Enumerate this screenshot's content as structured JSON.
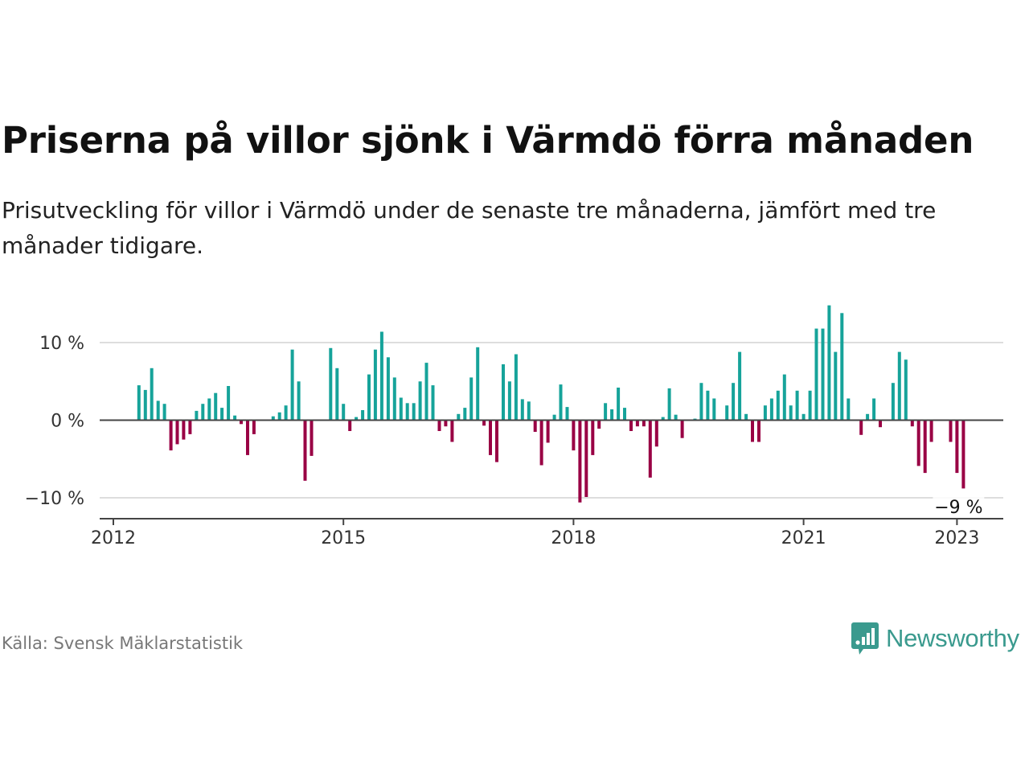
{
  "title": "Priserna på villor sjönk i Värmdö förra månaden",
  "subtitle": "Prisutveckling för villor i Värmdö under de senaste tre månaderna, jämfört med tre månader tidigare.",
  "source": "Källa: Svensk Mäklarstatistik",
  "brand": {
    "name": "Newsworthy",
    "icon": "bar-chart-speech-bubble-icon",
    "color": "#3a9a8e"
  },
  "colors": {
    "positive": "#16a39a",
    "negative": "#990044",
    "baseline": "#444444",
    "grid": "#dddddd"
  },
  "chart_data": {
    "type": "bar",
    "title": "Priserna på villor sjönk i Värmdö förra månaden",
    "subtitle": "Prisutveckling för villor i Värmdö under de senaste tre månaderna, jämfört med tre månader tidigare.",
    "xlabel": "",
    "ylabel": "",
    "unit": "%",
    "ylim": [
      -13,
      15
    ],
    "grid": true,
    "x_start": "2012-01",
    "x_end": "2023-07",
    "x_ticks": [
      {
        "date": "2012-01",
        "label": "2012"
      },
      {
        "date": "2015-01",
        "label": "2015"
      },
      {
        "date": "2018-01",
        "label": "2018"
      },
      {
        "date": "2021-01",
        "label": "2021"
      },
      {
        "date": "2023-01",
        "label": "2023"
      }
    ],
    "y_ticks": [
      {
        "value": 10,
        "label": "10 %"
      },
      {
        "value": 0,
        "label": "0 %"
      },
      {
        "value": -10,
        "label": "−10 %"
      }
    ],
    "annotation": {
      "date": "2023-01",
      "value": -9,
      "label": "−9 %"
    },
    "series": [
      {
        "values": [
          {
            "date": "2012-05",
            "value": 4.5
          },
          {
            "date": "2012-06",
            "value": 3.9
          },
          {
            "date": "2012-07",
            "value": 6.7
          },
          {
            "date": "2012-08",
            "value": 2.5
          },
          {
            "date": "2012-09",
            "value": 2.1
          },
          {
            "date": "2012-10",
            "value": -3.9
          },
          {
            "date": "2012-11",
            "value": -3.1
          },
          {
            "date": "2012-12",
            "value": -2.5
          },
          {
            "date": "2013-01",
            "value": -1.8
          },
          {
            "date": "2013-02",
            "value": 1.2
          },
          {
            "date": "2013-03",
            "value": 2.1
          },
          {
            "date": "2013-04",
            "value": 2.8
          },
          {
            "date": "2013-05",
            "value": 3.5
          },
          {
            "date": "2013-06",
            "value": 1.6
          },
          {
            "date": "2013-07",
            "value": 4.4
          },
          {
            "date": "2013-08",
            "value": 0.6
          },
          {
            "date": "2013-09",
            "value": -0.5
          },
          {
            "date": "2013-10",
            "value": -4.5
          },
          {
            "date": "2013-11",
            "value": -1.8
          },
          {
            "date": "2014-02",
            "value": 0.5
          },
          {
            "date": "2014-03",
            "value": 1.0
          },
          {
            "date": "2014-04",
            "value": 1.9
          },
          {
            "date": "2014-05",
            "value": 9.1
          },
          {
            "date": "2014-06",
            "value": 5.0
          },
          {
            "date": "2014-07",
            "value": -7.8
          },
          {
            "date": "2014-08",
            "value": -4.6
          },
          {
            "date": "2014-11",
            "value": 9.3
          },
          {
            "date": "2014-12",
            "value": 6.7
          },
          {
            "date": "2015-01",
            "value": 2.1
          },
          {
            "date": "2015-02",
            "value": -1.4
          },
          {
            "date": "2015-03",
            "value": 0.4
          },
          {
            "date": "2015-04",
            "value": 1.3
          },
          {
            "date": "2015-05",
            "value": 5.9
          },
          {
            "date": "2015-06",
            "value": 9.1
          },
          {
            "date": "2015-07",
            "value": 11.4
          },
          {
            "date": "2015-08",
            "value": 8.1
          },
          {
            "date": "2015-09",
            "value": 5.5
          },
          {
            "date": "2015-10",
            "value": 2.9
          },
          {
            "date": "2015-11",
            "value": 2.2
          },
          {
            "date": "2015-12",
            "value": 2.2
          },
          {
            "date": "2016-01",
            "value": 5.0
          },
          {
            "date": "2016-02",
            "value": 7.4
          },
          {
            "date": "2016-03",
            "value": 4.5
          },
          {
            "date": "2016-04",
            "value": -1.4
          },
          {
            "date": "2016-05",
            "value": -0.8
          },
          {
            "date": "2016-06",
            "value": -2.8
          },
          {
            "date": "2016-07",
            "value": 0.8
          },
          {
            "date": "2016-08",
            "value": 1.6
          },
          {
            "date": "2016-09",
            "value": 5.5
          },
          {
            "date": "2016-10",
            "value": 9.4
          },
          {
            "date": "2016-11",
            "value": -0.7
          },
          {
            "date": "2016-12",
            "value": -4.5
          },
          {
            "date": "2017-01",
            "value": -5.4
          },
          {
            "date": "2017-02",
            "value": 7.2
          },
          {
            "date": "2017-03",
            "value": 5.0
          },
          {
            "date": "2017-04",
            "value": 8.5
          },
          {
            "date": "2017-05",
            "value": 2.7
          },
          {
            "date": "2017-06",
            "value": 2.4
          },
          {
            "date": "2017-07",
            "value": -1.5
          },
          {
            "date": "2017-08",
            "value": -5.8
          },
          {
            "date": "2017-09",
            "value": -2.9
          },
          {
            "date": "2017-10",
            "value": 0.7
          },
          {
            "date": "2017-11",
            "value": 4.6
          },
          {
            "date": "2017-12",
            "value": 1.7
          },
          {
            "date": "2018-01",
            "value": -3.9
          },
          {
            "date": "2018-02",
            "value": -10.6
          },
          {
            "date": "2018-03",
            "value": -9.9
          },
          {
            "date": "2018-04",
            "value": -4.5
          },
          {
            "date": "2018-05",
            "value": -1.1
          },
          {
            "date": "2018-06",
            "value": 2.2
          },
          {
            "date": "2018-07",
            "value": 1.4
          },
          {
            "date": "2018-08",
            "value": 4.2
          },
          {
            "date": "2018-09",
            "value": 1.6
          },
          {
            "date": "2018-10",
            "value": -1.4
          },
          {
            "date": "2018-11",
            "value": -0.8
          },
          {
            "date": "2018-12",
            "value": -0.8
          },
          {
            "date": "2019-01",
            "value": -7.4
          },
          {
            "date": "2019-02",
            "value": -3.4
          },
          {
            "date": "2019-03",
            "value": 0.4
          },
          {
            "date": "2019-04",
            "value": 4.1
          },
          {
            "date": "2019-05",
            "value": 0.7
          },
          {
            "date": "2019-06",
            "value": -2.3
          },
          {
            "date": "2019-08",
            "value": 0.2
          },
          {
            "date": "2019-09",
            "value": 4.8
          },
          {
            "date": "2019-10",
            "value": 3.8
          },
          {
            "date": "2019-11",
            "value": 2.8
          },
          {
            "date": "2020-01",
            "value": 1.9
          },
          {
            "date": "2020-02",
            "value": 4.8
          },
          {
            "date": "2020-03",
            "value": 8.8
          },
          {
            "date": "2020-04",
            "value": 0.8
          },
          {
            "date": "2020-05",
            "value": -2.8
          },
          {
            "date": "2020-06",
            "value": -2.8
          },
          {
            "date": "2020-07",
            "value": 1.9
          },
          {
            "date": "2020-08",
            "value": 2.8
          },
          {
            "date": "2020-09",
            "value": 3.8
          },
          {
            "date": "2020-10",
            "value": 5.9
          },
          {
            "date": "2020-11",
            "value": 1.9
          },
          {
            "date": "2020-12",
            "value": 3.8
          },
          {
            "date": "2021-01",
            "value": 0.8
          },
          {
            "date": "2021-02",
            "value": 3.8
          },
          {
            "date": "2021-03",
            "value": 11.8
          },
          {
            "date": "2021-04",
            "value": 11.8
          },
          {
            "date": "2021-05",
            "value": 14.8
          },
          {
            "date": "2021-06",
            "value": 8.8
          },
          {
            "date": "2021-07",
            "value": 13.8
          },
          {
            "date": "2021-08",
            "value": 2.8
          },
          {
            "date": "2021-10",
            "value": -1.9
          },
          {
            "date": "2021-11",
            "value": 0.8
          },
          {
            "date": "2021-12",
            "value": 2.8
          },
          {
            "date": "2022-01",
            "value": -0.9
          },
          {
            "date": "2022-03",
            "value": 4.8
          },
          {
            "date": "2022-04",
            "value": 8.8
          },
          {
            "date": "2022-05",
            "value": 7.8
          },
          {
            "date": "2022-06",
            "value": -0.8
          },
          {
            "date": "2022-07",
            "value": -5.9
          },
          {
            "date": "2022-08",
            "value": -6.8
          },
          {
            "date": "2022-09",
            "value": -2.8
          },
          {
            "date": "2022-12",
            "value": -2.8
          },
          {
            "date": "2023-01",
            "value": -6.8
          },
          {
            "date": "2023-02",
            "value": -8.8
          }
        ]
      }
    ]
  }
}
